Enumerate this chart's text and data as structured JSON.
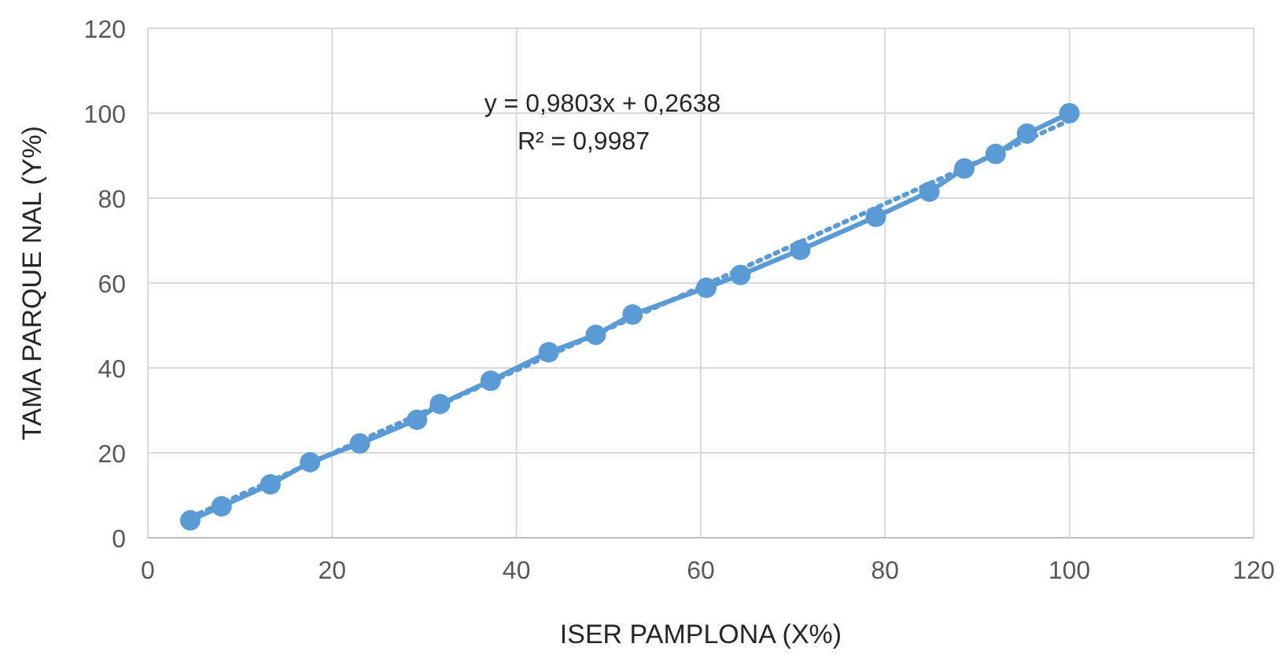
{
  "chart_data": {
    "type": "line",
    "xlabel": "ISER PAMPLONA (X%)",
    "ylabel": "TAMA PARQUE NAL (Y%)",
    "annotations": [
      "y = 0,9803x + 0,2638",
      "R² = 0,9987"
    ],
    "xlim": [
      0,
      120
    ],
    "xticks": [
      0,
      20,
      40,
      60,
      80,
      100,
      120
    ],
    "ylim": [
      0,
      120
    ],
    "yticks": [
      0,
      20,
      40,
      60,
      80,
      100,
      120
    ],
    "grid": true,
    "series": [
      {
        "color": "#5b9bd5",
        "marker": "circle",
        "line_style": "solid",
        "x": [
          4.6,
          8.0,
          13.3,
          17.6,
          23.0,
          29.2,
          31.7,
          37.2,
          43.5,
          48.6,
          52.6,
          60.6,
          64.3,
          70.8,
          79.0,
          84.8,
          88.6,
          92.0,
          95.4,
          100
        ],
        "values": [
          4.1,
          7.4,
          12.6,
          17.8,
          22.2,
          27.8,
          31.5,
          37.0,
          43.7,
          47.8,
          52.6,
          58.9,
          61.9,
          67.8,
          75.6,
          81.5,
          87.0,
          90.4,
          95.2,
          100
        ]
      },
      {
        "color": "#5b9bd5",
        "marker": "none",
        "line_style": "dotted",
        "x": [
          4.6,
          100
        ],
        "values": [
          4.77,
          98.29
        ]
      }
    ]
  }
}
